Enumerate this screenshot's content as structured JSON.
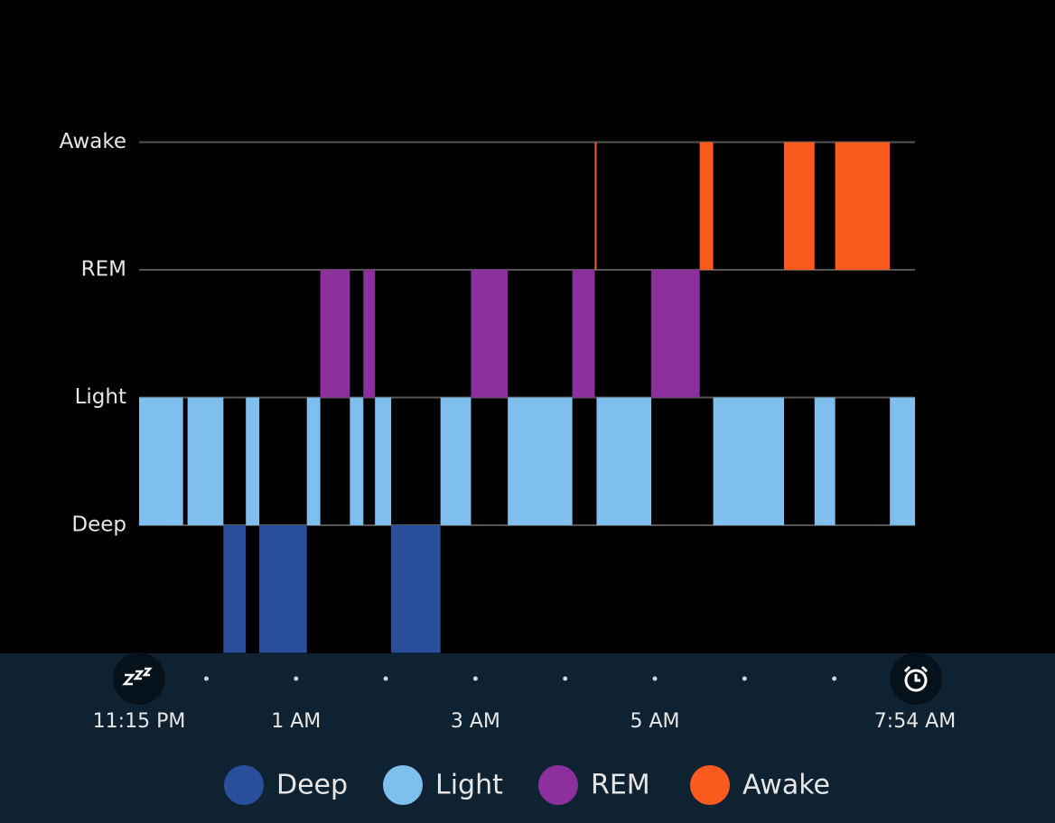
{
  "chart_data": {
    "type": "timeline",
    "series": [
      {
        "name": "Deep",
        "color": "#2a4f9a",
        "start": [
          0.19,
          0.59,
          2.06
        ],
        "end": [
          0.44,
          1.12,
          2.61
        ]
      },
      {
        "name": "Light",
        "color": "#7ebfee",
        "start": [
          -0.75,
          -0.21,
          0.44,
          1.12,
          1.6,
          1.88,
          2.61,
          3.36,
          4.35,
          5.65,
          6.78,
          7.62
        ],
        "end": [
          -0.26,
          0.19,
          0.59,
          1.27,
          1.75,
          2.06,
          2.95,
          4.08,
          4.96,
          6.44,
          7.01,
          7.9
        ]
      },
      {
        "name": "REM",
        "color": "#8e2f9e",
        "start": [
          1.27,
          1.75,
          2.95,
          4.08,
          4.96
        ],
        "end": [
          1.6,
          1.88,
          3.36,
          4.33,
          5.5
        ]
      },
      {
        "name": "Awake",
        "color": "#fb5a1f",
        "start": [
          4.33,
          5.5,
          6.44,
          7.01
        ],
        "end": [
          4.35,
          5.65,
          6.78,
          7.62
        ]
      }
    ],
    "xlim": [
      -0.75,
      7.9
    ],
    "xticks": [
      {
        "value": -0.75,
        "label": "11:15 PM"
      },
      {
        "value": 1,
        "label": "1 AM"
      },
      {
        "value": 3,
        "label": "3 AM"
      },
      {
        "value": 5,
        "label": "5 AM"
      },
      {
        "value": 7.9,
        "label": "7:54 AM"
      }
    ],
    "minor_xticks": [
      0,
      1,
      2,
      3,
      4,
      5,
      6,
      7
    ],
    "grid": true,
    "legend": "bottom"
  }
}
